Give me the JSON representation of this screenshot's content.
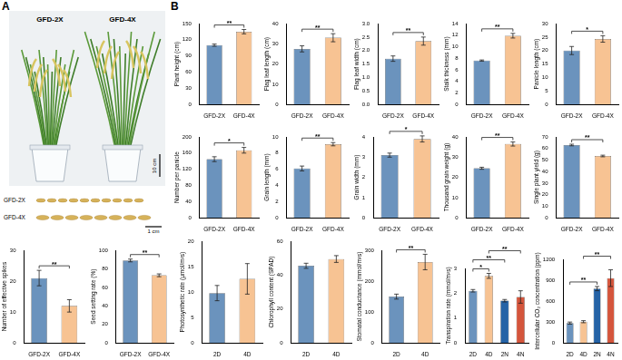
{
  "panel_a": {
    "label": "A",
    "plants": [
      "GFD-2X",
      "GFD-4X"
    ],
    "grains": [
      "GFD-2X",
      "GFD-4X"
    ],
    "scale_bars": [
      "10 cm",
      "1 cm"
    ]
  },
  "panel_b_label": "B",
  "chart_data": [
    {
      "type": "bar",
      "ylabel": "Plant height (cm)",
      "categories": [
        "GFD-2X",
        "GFD-4X"
      ],
      "values": [
        110,
        135
      ],
      "errors": [
        2,
        4
      ],
      "colors": [
        "#6b93bd",
        "#f7c393"
      ],
      "ylim": [
        0,
        150
      ],
      "yticks": [
        0,
        30,
        60,
        90,
        120,
        150
      ],
      "grid": false,
      "annotations": [
        {
          "from": 0,
          "to": 1,
          "label": "**"
        }
      ]
    },
    {
      "type": "bar",
      "ylabel": "Flag leaf length (cm)",
      "categories": [
        "GFD-2X",
        "GFD-4X"
      ],
      "values": [
        27.5,
        33
      ],
      "errors": [
        1.5,
        2
      ],
      "colors": [
        "#6b93bd",
        "#f7c393"
      ],
      "ylim": [
        0,
        40
      ],
      "yticks": [
        0,
        10,
        20,
        30,
        40
      ],
      "grid": false,
      "annotations": [
        {
          "from": 0,
          "to": 1,
          "label": "**"
        }
      ]
    },
    {
      "type": "bar",
      "ylabel": "Flag leaf width (cm)",
      "categories": [
        "GFD-2X",
        "GFD-4X"
      ],
      "values": [
        1.7,
        2.35
      ],
      "errors": [
        0.1,
        0.15
      ],
      "colors": [
        "#6b93bd",
        "#f7c393"
      ],
      "ylim": [
        0,
        3
      ],
      "yticks": [
        {
          "value": 0,
          "label": "0.0"
        },
        {
          "value": 0.5,
          "label": "0.5"
        },
        {
          "value": 1,
          "label": "1.0"
        },
        {
          "value": 1.5,
          "label": "1.5"
        },
        {
          "value": 2,
          "label": "2.0"
        },
        {
          "value": 2.5,
          "label": "2.5"
        },
        {
          "value": 3,
          "label": "3.0"
        }
      ],
      "grid": false,
      "annotations": [
        {
          "from": 0,
          "to": 1,
          "label": "**"
        }
      ]
    },
    {
      "type": "bar",
      "ylabel": "Stalk thickness (mm)",
      "categories": [
        "GFD-2X",
        "GFD-4X"
      ],
      "values": [
        7.6,
        11.9
      ],
      "errors": [
        0.1,
        0.4
      ],
      "colors": [
        "#6b93bd",
        "#f7c393"
      ],
      "ylim": [
        0,
        14
      ],
      "yticks": [
        0,
        2,
        4,
        6,
        8,
        10,
        12,
        14
      ],
      "grid": false,
      "annotations": [
        {
          "from": 0,
          "to": 1,
          "label": "**"
        }
      ]
    },
    {
      "type": "bar",
      "ylabel": "Panicle length (cm)",
      "categories": [
        "GFD-2X",
        "GFD-4X"
      ],
      "values": [
        20,
        24.3
      ],
      "errors": [
        1.5,
        1.2
      ],
      "colors": [
        "#6b93bd",
        "#f7c393"
      ],
      "ylim": [
        0,
        30
      ],
      "yticks": [
        0,
        5,
        10,
        15,
        20,
        25,
        30
      ],
      "grid": false,
      "annotations": [
        {
          "from": 0,
          "to": 1,
          "label": "*"
        }
      ]
    },
    {
      "type": "bar",
      "ylabel": "Number per panicle",
      "categories": [
        "GFD-2X",
        "GFD-4X"
      ],
      "values": [
        145,
        167
      ],
      "errors": [
        6,
        7
      ],
      "colors": [
        "#6b93bd",
        "#f7c393"
      ],
      "ylim": [
        0,
        200
      ],
      "yticks": [
        0,
        40,
        80,
        120,
        160,
        200
      ],
      "grid": false,
      "annotations": [
        {
          "from": 0,
          "to": 1,
          "label": "*"
        }
      ]
    },
    {
      "type": "bar",
      "ylabel": "Grain length (mm)",
      "categories": [
        "GFD-2X",
        "GFD-4X"
      ],
      "values": [
        6.1,
        9.1
      ],
      "errors": [
        0.3,
        0.2
      ],
      "colors": [
        "#6b93bd",
        "#f7c393"
      ],
      "ylim": [
        0,
        10
      ],
      "yticks": [
        0,
        2,
        4,
        6,
        8,
        10
      ],
      "grid": false,
      "annotations": [
        {
          "from": 0,
          "to": 1,
          "label": "**"
        }
      ]
    },
    {
      "type": "bar",
      "ylabel": "Grain width (mm)",
      "categories": [
        "GFD-2X",
        "GFD-4X"
      ],
      "values": [
        3.1,
        3.9
      ],
      "errors": [
        0.1,
        0.15
      ],
      "colors": [
        "#6b93bd",
        "#f7c393"
      ],
      "ylim": [
        0,
        4
      ],
      "yticks": [
        0,
        1,
        2,
        3,
        4
      ],
      "grid": false,
      "annotations": [
        {
          "from": 0,
          "to": 1,
          "label": "*"
        }
      ]
    },
    {
      "type": "bar",
      "ylabel": "Thousand grain weight (g)",
      "categories": [
        "GFD-2X",
        "GFD-4X"
      ],
      "values": [
        24.5,
        36.5
      ],
      "errors": [
        0.5,
        1
      ],
      "colors": [
        "#6b93bd",
        "#f7c393"
      ],
      "ylim": [
        0,
        40
      ],
      "yticks": [
        0,
        10,
        20,
        30,
        40
      ],
      "grid": false,
      "annotations": [
        {
          "from": 0,
          "to": 1,
          "label": "**"
        }
      ]
    },
    {
      "type": "bar",
      "ylabel": "Single plant yield (g)",
      "categories": [
        "GFD-2X",
        "GFD-4X"
      ],
      "values": [
        63,
        53.5
      ],
      "errors": [
        0.7,
        0.7
      ],
      "colors": [
        "#6b93bd",
        "#f7c393"
      ],
      "ylim": [
        0,
        70
      ],
      "yticks": [
        0,
        10,
        20,
        30,
        40,
        50,
        60,
        70
      ],
      "grid": false,
      "annotations": [
        {
          "from": 0,
          "to": 1,
          "label": "**"
        }
      ]
    },
    {
      "type": "bar",
      "ylabel": "Number of effective spikes",
      "categories": [
        "GFD-2X",
        "GFD-4X"
      ],
      "values": [
        21,
        12
      ],
      "errors": [
        2.5,
        2
      ],
      "colors": [
        "#6b93bd",
        "#f7c393"
      ],
      "ylim": [
        0,
        30
      ],
      "yticks": [
        0,
        10,
        20,
        30
      ],
      "grid": false,
      "annotations": [
        {
          "from": 0,
          "to": 1,
          "label": "**"
        }
      ]
    },
    {
      "type": "bar",
      "ylabel": "Seed setting rate (%)",
      "categories": [
        "GFD-2X",
        "GFD-4X"
      ],
      "values": [
        89,
        73
      ],
      "errors": [
        1.5,
        1.5
      ],
      "colors": [
        "#6b93bd",
        "#f7c393"
      ],
      "ylim": [
        0,
        100
      ],
      "yticks": [
        0,
        20,
        40,
        60,
        80,
        100
      ],
      "grid": false,
      "annotations": [
        {
          "from": 0,
          "to": 1,
          "label": "**"
        }
      ]
    },
    {
      "type": "bar",
      "ylabel": "Photosynthetic rate (μmol/m²s)",
      "categories": [
        "2D",
        "4D"
      ],
      "values": [
        9.8,
        12.6
      ],
      "errors": [
        1.5,
        3
      ],
      "colors": [
        "#6b93bd",
        "#f7c393"
      ],
      "ylim": [
        0,
        20
      ],
      "yticks": [
        0,
        5,
        10,
        15,
        20
      ],
      "grid": false,
      "annotations": []
    },
    {
      "type": "bar",
      "ylabel": "Chlorophyll content (SPAD)",
      "categories": [
        "2D",
        "4D"
      ],
      "values": [
        45.5,
        49.5
      ],
      "errors": [
        1.5,
        2
      ],
      "colors": [
        "#6b93bd",
        "#f7c393"
      ],
      "ylim": [
        0,
        60
      ],
      "yticks": [
        0,
        20,
        40,
        60
      ],
      "grid": false,
      "annotations": []
    },
    {
      "type": "bar",
      "ylabel": "Stomatal conductance (mmol/m²s)",
      "categories": [
        "2D",
        "4D"
      ],
      "values": [
        150,
        262
      ],
      "errors": [
        8,
        25
      ],
      "colors": [
        "#6b93bd",
        "#f7c393"
      ],
      "ylim": [
        0,
        300
      ],
      "yticks": [
        0,
        100,
        200,
        300
      ],
      "grid": false,
      "annotations": [
        {
          "from": 0,
          "to": 1,
          "label": "**"
        }
      ]
    },
    {
      "type": "bar",
      "ylabel": "Transpiration rate (mmol/m²s)",
      "categories": [
        "2D",
        "4D",
        "2N",
        "4N"
      ],
      "values": [
        2.1,
        2.7,
        1.7,
        1.85
      ],
      "errors": [
        0.05,
        0.1,
        0.05,
        0.25
      ],
      "colors": [
        "#6b93bd",
        "#f7c393",
        "#2563a6",
        "#d4553c"
      ],
      "ylim": [
        0,
        3
      ],
      "yticks": [
        0,
        1,
        2,
        3
      ],
      "grid": false,
      "annotations": [
        {
          "from": 0,
          "to": 1,
          "label": "*"
        },
        {
          "from": 0,
          "to": 2,
          "label": "**"
        },
        {
          "from": 1,
          "to": 3,
          "label": "**"
        }
      ]
    },
    {
      "type": "bar",
      "ylabel": "Intercellular CO₂ concentration (ppm)",
      "categories": [
        "2D",
        "4D",
        "2N",
        "4N"
      ],
      "values": [
        285,
        305,
        780,
        930
      ],
      "errors": [
        15,
        15,
        30,
        120
      ],
      "colors": [
        "#6b93bd",
        "#f7c393",
        "#2563a6",
        "#d4553c"
      ],
      "ylim": [
        0,
        1200
      ],
      "yticks": [
        0,
        300,
        600,
        900,
        1200
      ],
      "grid": false,
      "annotations": [
        {
          "from": 0,
          "to": 2,
          "label": "**"
        },
        {
          "from": 1,
          "to": 3,
          "label": "**"
        }
      ]
    }
  ]
}
